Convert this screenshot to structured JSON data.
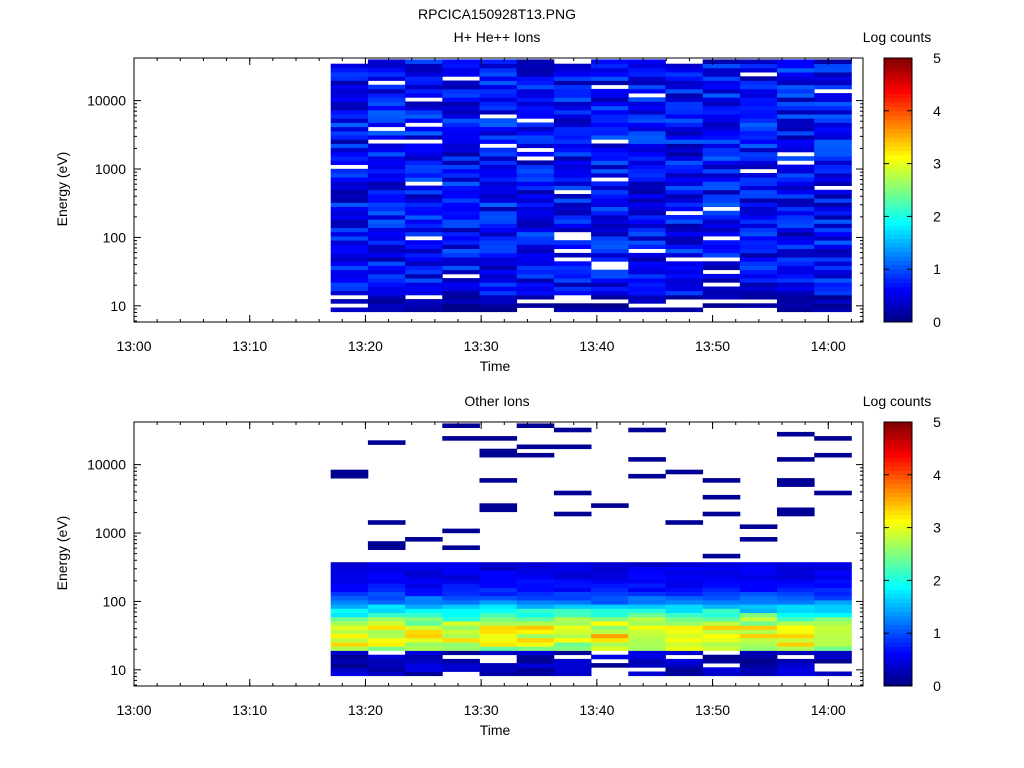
{
  "figure_title": "RPCICA150928T13.PNG",
  "chart_data": [
    {
      "type": "heatmap",
      "title": "H+ He++ Ions",
      "xlabel": "Time",
      "ylabel": "Energy (eV)",
      "x_range": [
        "13:00",
        "14:03"
      ],
      "x_ticks": [
        "13:00",
        "13:10",
        "13:20",
        "13:30",
        "13:40",
        "13:50",
        "14:00"
      ],
      "y_scale": "log",
      "y_range": [
        5.8,
        42000
      ],
      "y_ticks": [
        "10",
        "100",
        "1000",
        "10000"
      ],
      "data_start": "13:17",
      "data_end": "14:02",
      "n_time_bins": 14,
      "n_energy_bins": 60,
      "colorbar": {
        "label": "Log counts",
        "min": 0,
        "max": 5,
        "ticks": [
          "0",
          "1",
          "2",
          "3",
          "4",
          "5"
        ]
      },
      "profile": "uniform_low_counts",
      "typical_log_counts": [
        0.2,
        1.1
      ]
    },
    {
      "type": "heatmap",
      "title": "Other Ions",
      "xlabel": "Time",
      "ylabel": "Energy (eV)",
      "x_range": [
        "13:00",
        "14:03"
      ],
      "x_ticks": [
        "13:00",
        "13:10",
        "13:20",
        "13:30",
        "13:40",
        "13:50",
        "14:00"
      ],
      "y_scale": "log",
      "y_range": [
        5.8,
        42000
      ],
      "y_ticks": [
        "10",
        "100",
        "1000",
        "10000"
      ],
      "data_start": "13:17",
      "data_end": "14:02",
      "n_time_bins": 14,
      "n_energy_bins": 60,
      "colorbar": {
        "label": "Log counts",
        "min": 0,
        "max": 5,
        "ticks": [
          "0",
          "1",
          "2",
          "3",
          "4",
          "5"
        ]
      },
      "profile": "peak_near_30eV_sparse_above_400eV",
      "typical_log_counts": [
        0.0,
        3.1
      ]
    }
  ]
}
